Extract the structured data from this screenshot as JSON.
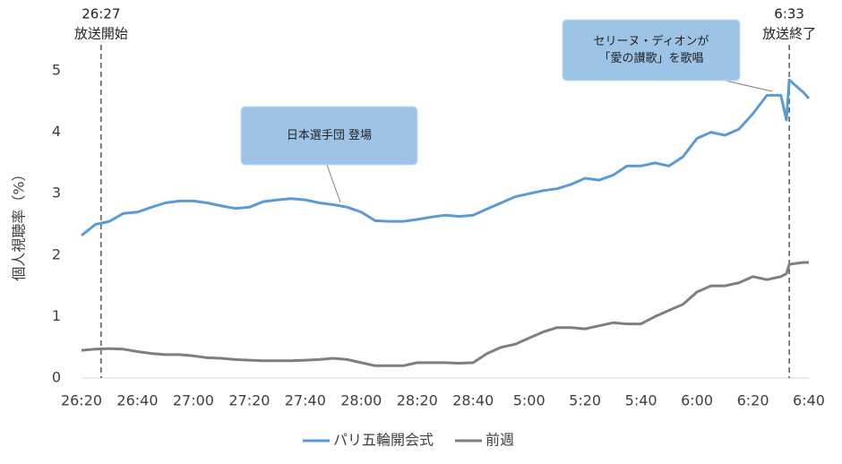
{
  "chart_data": {
    "type": "line",
    "y_label": "個人視聴率（%）",
    "x": [
      1580,
      1585,
      1590,
      1595,
      1600,
      1605,
      1610,
      1615,
      1620,
      1625,
      1630,
      1635,
      1640,
      1645,
      1650,
      1655,
      1660,
      1665,
      1670,
      1675,
      1680,
      1685,
      1690,
      1695,
      1700,
      1705,
      1710,
      1715,
      1720,
      1725,
      1730,
      1735,
      1740,
      1745,
      1750,
      1755,
      1760,
      1765,
      1770,
      1775,
      1780,
      1785,
      1790,
      1795,
      1800,
      1805,
      1810,
      1815,
      1820,
      1825,
      1830,
      1832,
      1833,
      1838,
      1840
    ],
    "series": [
      {
        "name": "パリ五輪開会式",
        "color": "#5b9bd5",
        "values": [
          2.32,
          2.5,
          2.55,
          2.68,
          2.7,
          2.78,
          2.85,
          2.88,
          2.88,
          2.85,
          2.8,
          2.76,
          2.78,
          2.87,
          2.9,
          2.92,
          2.9,
          2.85,
          2.82,
          2.78,
          2.7,
          2.56,
          2.55,
          2.55,
          2.58,
          2.62,
          2.65,
          2.63,
          2.65,
          2.75,
          2.85,
          2.95,
          3.0,
          3.05,
          3.08,
          3.15,
          3.25,
          3.22,
          3.3,
          3.45,
          3.45,
          3.5,
          3.45,
          3.6,
          3.9,
          4.0,
          3.95,
          4.05,
          4.3,
          4.6,
          4.6,
          4.2,
          4.85,
          4.65,
          4.55
        ]
      },
      {
        "name": "前週",
        "color": "#7f7f7f",
        "values": [
          0.45,
          0.47,
          0.48,
          0.47,
          0.43,
          0.4,
          0.38,
          0.38,
          0.36,
          0.33,
          0.32,
          0.3,
          0.29,
          0.28,
          0.28,
          0.28,
          0.29,
          0.3,
          0.32,
          0.3,
          0.25,
          0.2,
          0.2,
          0.2,
          0.25,
          0.25,
          0.25,
          0.24,
          0.25,
          0.4,
          0.5,
          0.55,
          0.65,
          0.75,
          0.82,
          0.82,
          0.8,
          0.85,
          0.9,
          0.88,
          0.88,
          1.0,
          1.1,
          1.2,
          1.4,
          1.5,
          1.5,
          1.55,
          1.65,
          1.6,
          1.65,
          1.7,
          1.85,
          1.88,
          1.88
        ]
      }
    ],
    "xlim": [
      1580,
      1840
    ],
    "xticks": [
      {
        "value": 1580,
        "label": "26:20"
      },
      {
        "value": 1600,
        "label": "26:40"
      },
      {
        "value": 1620,
        "label": "27:00"
      },
      {
        "value": 1640,
        "label": "27:20"
      },
      {
        "value": 1660,
        "label": "27:40"
      },
      {
        "value": 1680,
        "label": "28:00"
      },
      {
        "value": 1700,
        "label": "28:20"
      },
      {
        "value": 1720,
        "label": "28:40"
      },
      {
        "value": 1740,
        "label": "5:00"
      },
      {
        "value": 1760,
        "label": "5:20"
      },
      {
        "value": 1780,
        "label": "5:40"
      },
      {
        "value": 1800,
        "label": "6:00"
      },
      {
        "value": 1820,
        "label": "6:20"
      },
      {
        "value": 1840,
        "label": "6:40"
      }
    ],
    "ylim": [
      0,
      5.5
    ],
    "yticks": [
      0,
      1,
      2,
      3,
      4,
      5
    ],
    "vlines": [
      {
        "x": 1587,
        "label": "26:27",
        "text": "放送開始"
      },
      {
        "x": 1833,
        "label": "6:33",
        "text": "放送終了"
      }
    ],
    "callouts": [
      {
        "lines": [
          "日本選手団 登場"
        ]
      },
      {
        "lines": [
          "セリーヌ・ディオンが",
          "「愛の讃歌」を歌唱"
        ]
      }
    ]
  }
}
